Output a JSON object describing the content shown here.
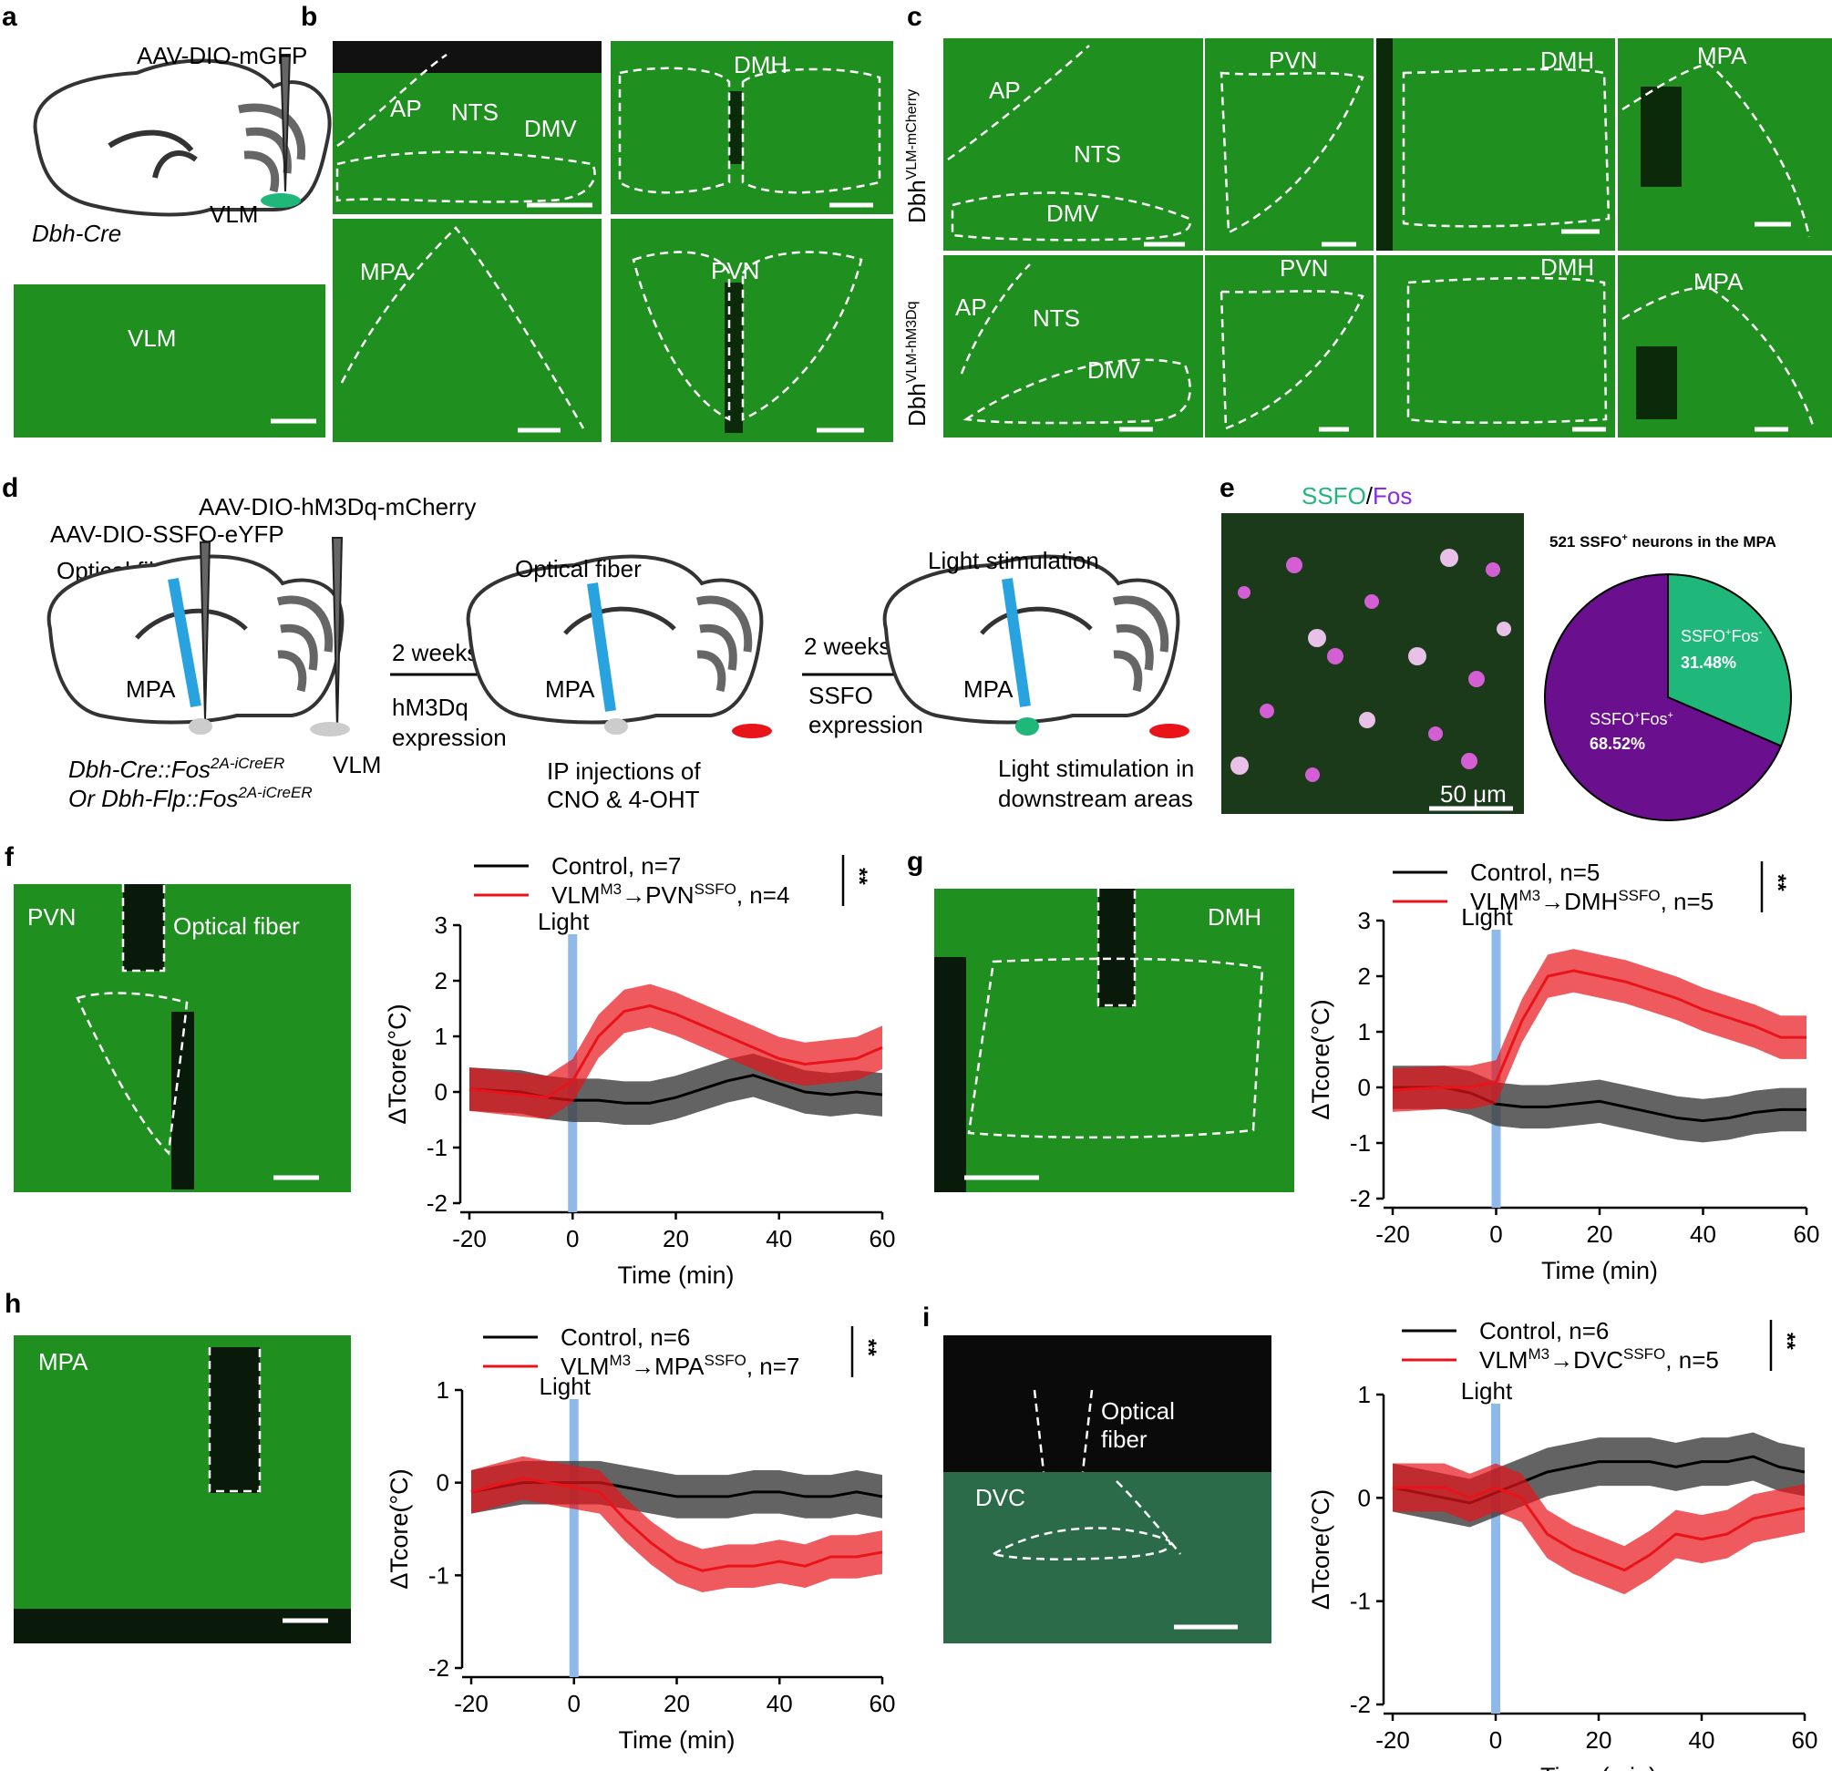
{
  "panel_letters": [
    "a",
    "b",
    "c",
    "d",
    "e",
    "f",
    "g",
    "h",
    "i"
  ],
  "panel_a": {
    "virus": "AAV-DIO-mGFP",
    "region": "VLM",
    "mouse": "Dbh-Cre",
    "image_label": "VLM"
  },
  "panel_b": {
    "labels": [
      "AP",
      "NTS",
      "DMV",
      "DMH",
      "MPA",
      "PVN"
    ]
  },
  "panel_c": {
    "row1_prefix": "Dbh",
    "row1_sup": "VLM-mCherry",
    "row2_prefix": "Dbh",
    "row2_sup": "VLM-hM3Dq",
    "labels": [
      "AP",
      "NTS",
      "DMV",
      "PVN",
      "DMH",
      "MPA"
    ]
  },
  "panel_d": {
    "virus1": "AAV-DIO-hM3Dq-mCherry",
    "virus2": "AAV-DIO-SSFO-eYFP",
    "fiber": "Optical fiber",
    "fiber2": "Optical fiber",
    "mpa": "MPA",
    "vlm": "VLM",
    "mouse1_a": "Dbh-Cre::Fos",
    "mouse1_sup": "2A-iCreER",
    "mouse2_a": "Or Dbh-Flp::Fos",
    "mouse2_sup": "2A-iCreER",
    "step1_time": "2 weeks",
    "step1_line1": "hM3Dq",
    "step1_line2": "expression",
    "step2_time": "2 weeks",
    "step2_line1": "SSFO",
    "step2_line2": "expression",
    "ip_line1": "IP injections of",
    "ip_line2": "CNO & 4-OHT",
    "light": "Light stimulation",
    "light_line1": "Light stimulation in",
    "light_line2": "downstream areas"
  },
  "panel_e": {
    "title_ssfo": "SSFO",
    "title_slash": "/",
    "title_fos": "Fos",
    "scale": "50 μm",
    "pie_title_pre": "521 SSFO",
    "pie_title_post": " neurons in the MPA",
    "pie_neg_label": "SSFO",
    "pie_neg_label2": "Fos",
    "pie_neg_value": "31.48%",
    "pie_pos_label": "SSFO",
    "pie_pos_label2": "Fos",
    "pie_pos_value": "68.52%"
  },
  "micrograph_labels": {
    "f_region": "PVN",
    "f_fiber": "Optical fiber",
    "g_region": "DMH",
    "h_region": "MPA",
    "i_region": "DVC",
    "i_fiber1": "Optical",
    "i_fiber2": "fiber"
  },
  "stats": {
    "sig": "**"
  },
  "colors": {
    "control": "#000000",
    "ssfo": "#e8141a",
    "light": "#8fb9e8",
    "micro_green": "#1f8f1f",
    "pie_pos": "#6a0f8e",
    "pie_neg": "#1fb77a"
  },
  "chart_data": [
    {
      "panel": "f",
      "type": "line",
      "xlabel": "Time (min)",
      "ylabel": "ΔTcore(°C)",
      "xlim": [
        -20,
        60
      ],
      "ylim": [
        -2,
        3
      ],
      "xticks": [
        "-20",
        "0",
        "20",
        "40",
        "60"
      ],
      "yticks": [
        "-2",
        "-1",
        "0",
        "1",
        "2",
        "3"
      ],
      "annotation": "Light",
      "x": [
        -20,
        -10,
        -5,
        0,
        5,
        10,
        15,
        20,
        25,
        30,
        35,
        40,
        45,
        50,
        55,
        60
      ],
      "series": [
        {
          "name": "Control, n=7",
          "values": [
            0.05,
            0.0,
            -0.1,
            -0.15,
            -0.15,
            -0.2,
            -0.2,
            -0.1,
            0.05,
            0.2,
            0.3,
            0.15,
            0.0,
            -0.05,
            0.0,
            -0.05
          ]
        },
        {
          "name": "VLM→PVN, n=4",
          "pre": "VLM",
          "sup1": "M3",
          "mid": "→PVN",
          "sup2": "SSFO",
          "post": ", n=4",
          "values": [
            0.05,
            -0.05,
            -0.1,
            0.2,
            1.0,
            1.45,
            1.55,
            1.4,
            1.2,
            1.0,
            0.8,
            0.6,
            0.5,
            0.55,
            0.6,
            0.8
          ]
        }
      ]
    },
    {
      "panel": "g",
      "type": "line",
      "xlabel": "Time (min)",
      "ylabel": "ΔTcore(°C)",
      "xlim": [
        -20,
        60
      ],
      "ylim": [
        -2,
        3
      ],
      "xticks": [
        "-20",
        "0",
        "20",
        "40",
        "60"
      ],
      "yticks": [
        "-2",
        "-1",
        "0",
        "1",
        "2",
        "3"
      ],
      "annotation": "Light",
      "x": [
        -20,
        -10,
        -5,
        0,
        5,
        10,
        15,
        20,
        25,
        30,
        35,
        40,
        45,
        50,
        55,
        60
      ],
      "series": [
        {
          "name": "Control, n=5",
          "values": [
            0.0,
            0.0,
            -0.1,
            -0.3,
            -0.35,
            -0.35,
            -0.3,
            -0.25,
            -0.35,
            -0.45,
            -0.55,
            -0.6,
            -0.55,
            -0.45,
            -0.4,
            -0.4
          ]
        },
        {
          "name": "VLM→DMH, n=5",
          "pre": "VLM",
          "sup1": "M3",
          "mid": "→DMH",
          "sup2": "SSFO",
          "post": ", n=5",
          "values": [
            -0.05,
            0.0,
            0.0,
            0.1,
            1.2,
            2.0,
            2.1,
            2.0,
            1.9,
            1.75,
            1.6,
            1.4,
            1.25,
            1.1,
            0.9,
            0.9
          ]
        }
      ]
    },
    {
      "panel": "h",
      "type": "line",
      "xlabel": "Time (min)",
      "ylabel": "ΔTcore(°C)",
      "xlim": [
        -20,
        60
      ],
      "ylim": [
        -2,
        1
      ],
      "xticks": [
        "-20",
        "0",
        "20",
        "40",
        "60"
      ],
      "yticks": [
        "-2",
        "-1",
        "0",
        "1"
      ],
      "annotation": "Light",
      "x": [
        -20,
        -10,
        -5,
        0,
        5,
        10,
        15,
        20,
        25,
        30,
        35,
        40,
        45,
        50,
        55,
        60
      ],
      "series": [
        {
          "name": "Control, n=6",
          "values": [
            -0.1,
            0.0,
            0.0,
            0.0,
            0.0,
            -0.05,
            -0.1,
            -0.15,
            -0.15,
            -0.15,
            -0.1,
            -0.1,
            -0.15,
            -0.15,
            -0.1,
            -0.15
          ]
        },
        {
          "name": "VLM→MPA, n=7",
          "pre": "VLM",
          "sup1": "M3",
          "mid": "→MPA",
          "sup2": "SSFO",
          "post": ", n=7",
          "values": [
            -0.1,
            0.05,
            0.0,
            -0.05,
            -0.1,
            -0.4,
            -0.65,
            -0.85,
            -0.95,
            -0.9,
            -0.9,
            -0.85,
            -0.9,
            -0.8,
            -0.8,
            -0.75
          ]
        }
      ]
    },
    {
      "panel": "i",
      "type": "line",
      "xlabel": "Time (min)",
      "ylabel": "ΔTcore(°C)",
      "xlim": [
        -20,
        60
      ],
      "ylim": [
        -2,
        1
      ],
      "xticks": [
        "-20",
        "0",
        "20",
        "40",
        "60"
      ],
      "yticks": [
        "-2",
        "-1",
        "0",
        "1"
      ],
      "annotation": "Light",
      "x": [
        -20,
        -10,
        -5,
        0,
        5,
        10,
        15,
        20,
        25,
        30,
        35,
        40,
        45,
        50,
        55,
        60
      ],
      "series": [
        {
          "name": "Control, n=6",
          "values": [
            0.1,
            0.0,
            -0.05,
            0.05,
            0.15,
            0.25,
            0.3,
            0.35,
            0.35,
            0.35,
            0.3,
            0.35,
            0.35,
            0.4,
            0.3,
            0.25
          ]
        },
        {
          "name": "VLM→DVC, n=5",
          "pre": "VLM",
          "sup1": "M3",
          "mid": "→DVC",
          "sup2": "SSFO",
          "post": ", n=5",
          "values": [
            0.1,
            0.1,
            0.0,
            0.1,
            0.0,
            -0.35,
            -0.5,
            -0.6,
            -0.7,
            -0.55,
            -0.35,
            -0.4,
            -0.35,
            -0.2,
            -0.15,
            -0.1
          ]
        }
      ]
    }
  ]
}
